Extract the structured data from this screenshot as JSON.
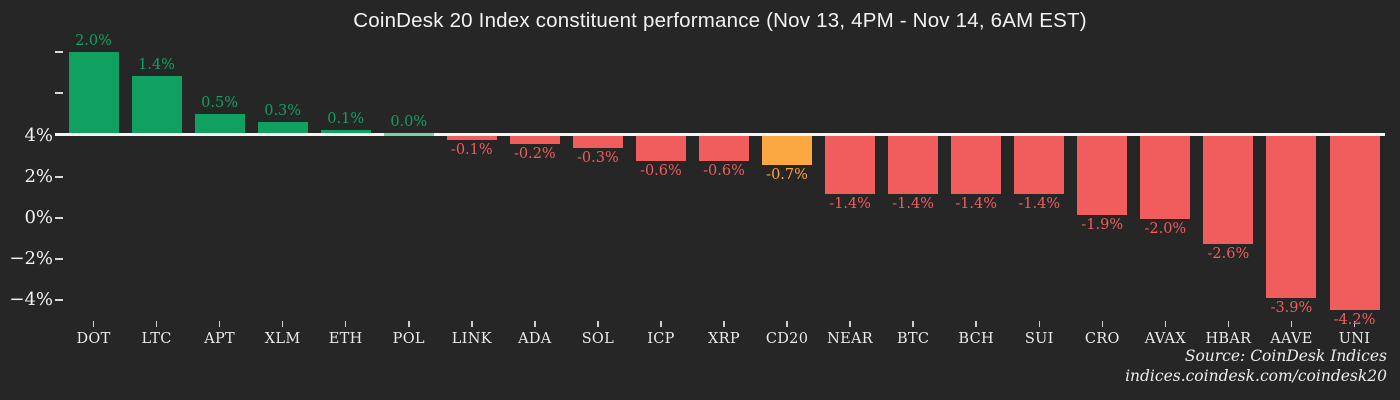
{
  "colors": {
    "green": "#10a161",
    "red": "#f15c5c",
    "orange": "#fba742",
    "background": "#262626",
    "axis_line": "#f6f6f4",
    "tick": "#d8d8d8",
    "text": "#f2f2f2"
  },
  "chart_data": {
    "type": "bar",
    "title": "CoinDesk 20 Index constituent performance (Nov 13, 4PM - Nov 14, 6AM EST)",
    "categories": [
      "DOT",
      "LTC",
      "APT",
      "XLM",
      "ETH",
      "POL",
      "LINK",
      "ADA",
      "SOL",
      "ICP",
      "XRP",
      "CD20",
      "NEAR",
      "BTC",
      "BCH",
      "SUI",
      "CRO",
      "AVAX",
      "HBAR",
      "AAVE",
      "UNI"
    ],
    "values": [
      2.0,
      1.4,
      0.5,
      0.3,
      0.1,
      0.0,
      -0.1,
      -0.2,
      -0.3,
      -0.6,
      -0.6,
      -0.7,
      -1.4,
      -1.4,
      -1.4,
      -1.4,
      -1.9,
      -2.0,
      -2.6,
      -3.9,
      -4.2
    ],
    "value_labels": [
      "2.0%",
      "1.4%",
      "0.5%",
      "0.3%",
      "0.1%",
      "0.0%",
      "-0.1%",
      "-0.2%",
      "-0.3%",
      "-0.6%",
      "-0.6%",
      "-0.7%",
      "-1.4%",
      "-1.4%",
      "-1.4%",
      "-1.4%",
      "-1.9%",
      "-2.0%",
      "-2.6%",
      "-3.9%",
      "-4.2%"
    ],
    "bar_colors": [
      "green",
      "green",
      "green",
      "green",
      "green",
      "green",
      "red",
      "red",
      "red",
      "red",
      "red",
      "orange",
      "red",
      "red",
      "red",
      "red",
      "red",
      "red",
      "red",
      "red",
      "red"
    ],
    "highlighted_category": "CD20",
    "xlabel": "",
    "ylabel": "",
    "grid": false,
    "legend": null,
    "y_axis": {
      "tick_labels": [
        "4%",
        "2%",
        "0%",
        "−2%",
        "−4%"
      ]
    }
  },
  "source": {
    "line1": "Source: CoinDesk Indices",
    "line2": "indices.coindesk.com/coindesk20"
  }
}
